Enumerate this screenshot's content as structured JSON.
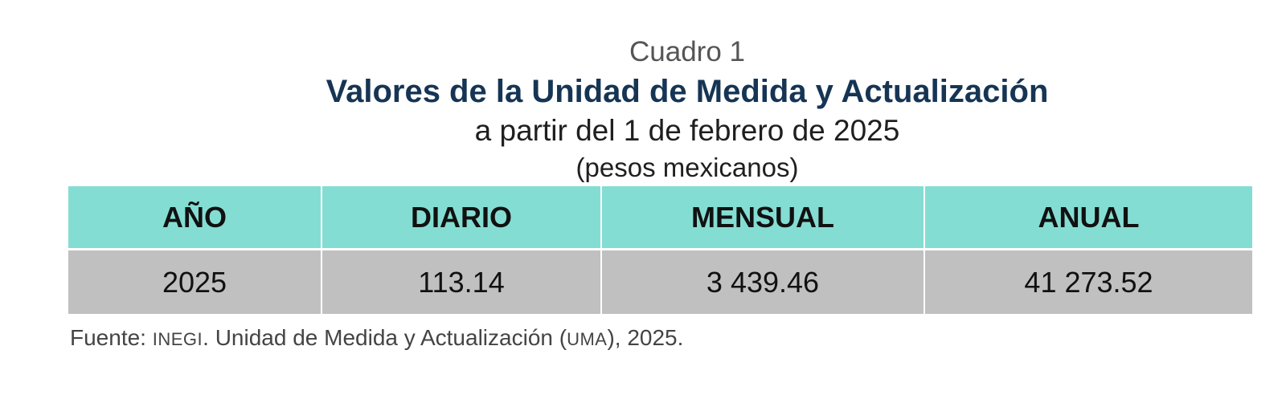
{
  "caption": "Cuadro 1",
  "title": "Valores de la Unidad de Medida y Actualización",
  "subtitle": "a partir del 1 de febrero de 2025",
  "units": "(pesos mexicanos)",
  "table": {
    "headers": [
      "AÑO",
      "DIARIO",
      "MENSUAL",
      "ANUAL"
    ],
    "rows": [
      [
        "2025",
        "113.14",
        "3 439.46",
        "41 273.52"
      ]
    ]
  },
  "source": {
    "prefix": "Fuente: ",
    "org": "INEGI",
    "middle": ". Unidad de Medida y Actualización (",
    "abbr": "UMA",
    "suffix": "), 2025."
  },
  "colors": {
    "header_bg": "#84ddd3",
    "row_bg": "#c0c0c0",
    "title": "#163554"
  }
}
